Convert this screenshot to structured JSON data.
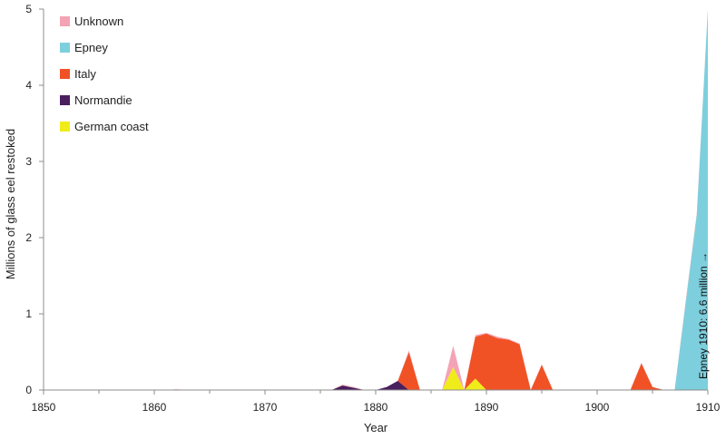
{
  "chart_data": {
    "type": "area",
    "stacked": true,
    "xlabel": "Year",
    "ylabel": "Millions  of glass eel restoked",
    "xlim": [
      1850,
      1910
    ],
    "ylim": [
      0,
      5
    ],
    "x_ticks": [
      1850,
      1860,
      1870,
      1880,
      1890,
      1900,
      1910
    ],
    "x_minor_ticks": [
      1855,
      1865,
      1875,
      1885,
      1895,
      1905
    ],
    "y_ticks": [
      0,
      1,
      2,
      3,
      4,
      5
    ],
    "legend_position": "top-left",
    "x": [
      1850,
      1851,
      1852,
      1853,
      1854,
      1855,
      1856,
      1857,
      1858,
      1859,
      1860,
      1861,
      1862,
      1863,
      1864,
      1865,
      1866,
      1867,
      1868,
      1869,
      1870,
      1871,
      1872,
      1873,
      1874,
      1875,
      1876,
      1877,
      1878,
      1879,
      1880,
      1881,
      1882,
      1883,
      1884,
      1885,
      1886,
      1887,
      1888,
      1889,
      1890,
      1891,
      1892,
      1893,
      1894,
      1895,
      1896,
      1897,
      1898,
      1899,
      1900,
      1901,
      1902,
      1903,
      1904,
      1905,
      1906,
      1907,
      1908,
      1909,
      1910
    ],
    "series": [
      {
        "name": "German coast",
        "color": "#f0ec1a",
        "values": [
          0,
          0,
          0,
          0,
          0,
          0,
          0,
          0,
          0,
          0,
          0,
          0,
          0,
          0,
          0,
          0,
          0,
          0,
          0,
          0,
          0,
          0,
          0,
          0,
          0,
          0,
          0,
          0,
          0,
          0,
          0,
          0,
          0,
          0,
          0,
          0,
          0,
          0.3,
          0,
          0.15,
          0,
          0,
          0,
          0,
          0,
          0,
          0,
          0,
          0,
          0,
          0,
          0,
          0,
          0,
          0,
          0,
          0,
          0,
          0,
          0,
          0
        ]
      },
      {
        "name": "Normandie",
        "color": "#4a1f5e",
        "values": [
          0,
          0,
          0,
          0,
          0,
          0,
          0,
          0,
          0,
          0,
          0,
          0,
          0,
          0,
          0,
          0,
          0,
          0,
          0,
          0,
          0,
          0,
          0,
          0,
          0,
          0,
          0,
          0.06,
          0.03,
          0,
          0,
          0.04,
          0.12,
          0,
          0,
          0,
          0,
          0,
          0,
          0,
          0,
          0,
          0,
          0,
          0,
          0,
          0,
          0,
          0,
          0,
          0,
          0,
          0,
          0,
          0,
          0,
          0,
          0,
          0,
          0,
          0
        ]
      },
      {
        "name": "Italy",
        "color": "#f05226",
        "values": [
          0,
          0,
          0,
          0,
          0,
          0,
          0,
          0,
          0,
          0,
          0,
          0,
          0,
          0,
          0,
          0,
          0,
          0,
          0,
          0,
          0,
          0,
          0,
          0,
          0,
          0,
          0,
          0,
          0,
          0,
          0,
          0,
          0,
          0.5,
          0,
          0,
          0,
          0,
          0,
          0.55,
          0.74,
          0.68,
          0.66,
          0.6,
          0,
          0.33,
          0,
          0,
          0,
          0,
          0,
          0,
          0,
          0,
          0.35,
          0.04,
          0,
          0,
          0,
          0,
          0
        ]
      },
      {
        "name": "Epney",
        "color": "#7ecfdd",
        "values": [
          0,
          0,
          0,
          0,
          0,
          0,
          0,
          0,
          0,
          0,
          0,
          0,
          0,
          0,
          0,
          0,
          0,
          0,
          0,
          0,
          0,
          0,
          0,
          0,
          0,
          0,
          0,
          0,
          0,
          0,
          0,
          0,
          0,
          0,
          0,
          0,
          0,
          0,
          0,
          0,
          0,
          0,
          0,
          0,
          0,
          0,
          0,
          0,
          0,
          0,
          0,
          0,
          0,
          0,
          0,
          0,
          0,
          0,
          1.15,
          2.3,
          5.0
        ]
      },
      {
        "name": "Unknown",
        "color": "#f4a3b5",
        "values": [
          0,
          0,
          0,
          0,
          0,
          0,
          0,
          0,
          0,
          0,
          0,
          0,
          0.01,
          0,
          0,
          0,
          0,
          0,
          0,
          0,
          0,
          0,
          0,
          0,
          0,
          0,
          0,
          0.01,
          0.01,
          0,
          0,
          0,
          0,
          0.02,
          0,
          0,
          0,
          0.28,
          0,
          0.02,
          0.01,
          0.02,
          0.01,
          0.01,
          0,
          0.01,
          0,
          0,
          0,
          0,
          0,
          0,
          0,
          0,
          0.01,
          0,
          0,
          0,
          0.02,
          0.02,
          0
        ]
      }
    ],
    "annotations": [
      {
        "text": "Epney 1910: 6.6 million →",
        "x": 1909.6,
        "y": 2.2,
        "rotation": -90
      }
    ]
  }
}
